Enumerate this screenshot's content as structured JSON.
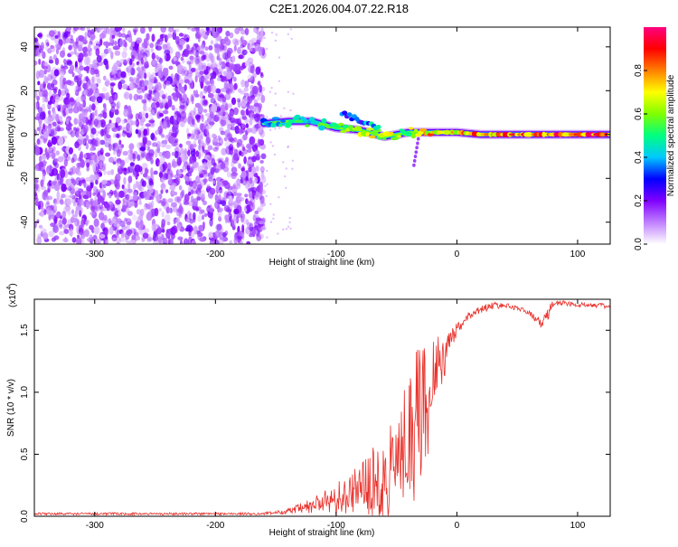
{
  "title": "C2E1.2026.004.07.22.R18",
  "chart_data": [
    {
      "type": "heatmap",
      "name": "spectrogram",
      "xlabel": "Height of straight line (km)",
      "ylabel": "Frequency (Hz)",
      "xlim": [
        -350,
        127
      ],
      "ylim": [
        -50,
        49
      ],
      "xticks": [
        -300,
        -200,
        -100,
        0,
        100
      ],
      "yticks": [
        -40,
        -20,
        0,
        20,
        40
      ],
      "xtick_labels": [
        "-300",
        "-200",
        "-100",
        "0",
        "100"
      ],
      "ytick_labels": [
        "-40",
        "-20",
        "0",
        "20",
        "40"
      ],
      "noise_region_x": [
        -350,
        -160
      ],
      "signal_track": [
        {
          "x": -160,
          "y": 5,
          "amp": 0.45
        },
        {
          "x": -140,
          "y": 6,
          "amp": 0.5
        },
        {
          "x": -120,
          "y": 6,
          "amp": 0.55
        },
        {
          "x": -100,
          "y": 3,
          "amp": 0.6
        },
        {
          "x": -80,
          "y": 2,
          "amp": 0.75
        },
        {
          "x": -60,
          "y": -1,
          "amp": 0.7
        },
        {
          "x": -40,
          "y": 1,
          "amp": 0.7
        },
        {
          "x": -20,
          "y": 1,
          "amp": 0.85
        },
        {
          "x": 0,
          "y": 1,
          "amp": 0.8
        },
        {
          "x": 20,
          "y": 0,
          "amp": 0.9
        },
        {
          "x": 60,
          "y": 0,
          "amp": 0.95
        },
        {
          "x": 100,
          "y": 0,
          "amp": 0.95
        },
        {
          "x": 127,
          "y": 0,
          "amp": 0.95
        }
      ],
      "colorbar": {
        "label": "Normalized spectral amplitude",
        "ticks": [
          0.0,
          0.2,
          0.4,
          0.6,
          0.8
        ],
        "tick_labels": [
          "0.0",
          "0.2",
          "0.4",
          "0.6",
          "0.8"
        ],
        "range": [
          0,
          1
        ],
        "colors": [
          "#ffffff",
          "#c080ff",
          "#8000ff",
          "#0000ff",
          "#00c8ff",
          "#00ff80",
          "#80ff00",
          "#ffff00",
          "#ff8000",
          "#ff0000",
          "#ff0080"
        ]
      }
    },
    {
      "type": "line",
      "name": "snr",
      "xlabel": "Height of straight line (km)",
      "ylabel": "SNR (10 * v/v)",
      "scale_label": "(x10",
      "scale_exponent": "4",
      "scale_close": ")",
      "xlim": [
        -350,
        127
      ],
      "ylim": [
        0,
        1.75
      ],
      "xticks": [
        -300,
        -200,
        -100,
        0,
        100
      ],
      "xtick_labels": [
        "-300",
        "-200",
        "-100",
        "0",
        "100"
      ],
      "yticks": [
        0.0,
        0.5,
        1.0,
        1.5
      ],
      "ytick_labels": [
        "0.0",
        "0.5",
        "1.0",
        "1.5"
      ],
      "series": [
        {
          "name": "SNR",
          "color": "#e8302a",
          "x": [
            -350,
            -300,
            -250,
            -200,
            -160,
            -140,
            -120,
            -110,
            -100,
            -90,
            -80,
            -70,
            -60,
            -50,
            -40,
            -30,
            -20,
            -10,
            0,
            10,
            20,
            30,
            40,
            50,
            60,
            70,
            75,
            80,
            90,
            100,
            110,
            127
          ],
          "y": [
            0.02,
            0.02,
            0.02,
            0.02,
            0.02,
            0.04,
            0.08,
            0.12,
            0.17,
            0.2,
            0.25,
            0.3,
            0.38,
            0.5,
            0.7,
            0.95,
            1.15,
            1.3,
            1.5,
            1.62,
            1.67,
            1.7,
            1.7,
            1.68,
            1.64,
            1.55,
            1.62,
            1.72,
            1.72,
            1.7,
            1.71,
            1.69
          ],
          "spread": [
            0.01,
            0.01,
            0.01,
            0.01,
            0.01,
            0.02,
            0.07,
            0.1,
            0.12,
            0.15,
            0.2,
            0.25,
            0.3,
            0.35,
            0.45,
            0.5,
            0.3,
            0.15,
            0.06,
            0.03,
            0.03,
            0.03,
            0.02,
            0.02,
            0.02,
            0.04,
            0.06,
            0.03,
            0.02,
            0.02,
            0.02,
            0.02
          ]
        }
      ]
    }
  ]
}
